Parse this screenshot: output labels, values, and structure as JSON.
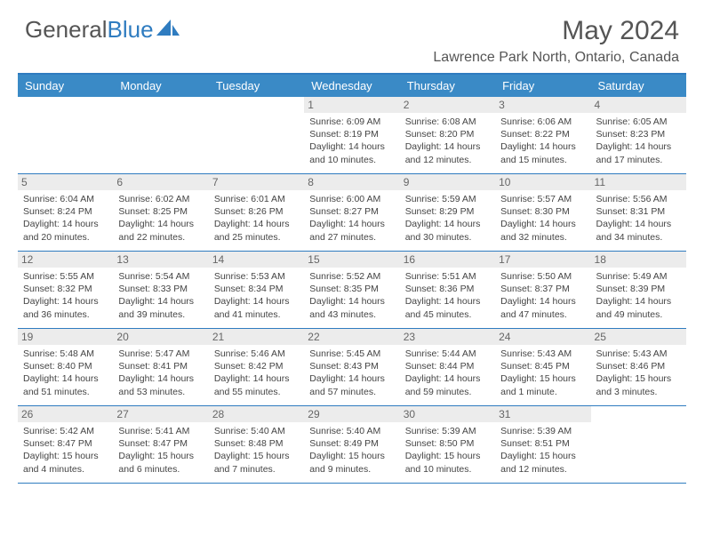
{
  "brand": {
    "part1": "General",
    "part2": "Blue"
  },
  "title": "May 2024",
  "location": "Lawrence Park North, Ontario, Canada",
  "colors": {
    "header_bar": "#3a8ac6",
    "border": "#2f7cc0",
    "daynum_bg": "#ececec",
    "text": "#444"
  },
  "day_names": [
    "Sunday",
    "Monday",
    "Tuesday",
    "Wednesday",
    "Thursday",
    "Friday",
    "Saturday"
  ],
  "weeks": [
    [
      {
        "n": "",
        "sr": "",
        "ss": "",
        "dl": ""
      },
      {
        "n": "",
        "sr": "",
        "ss": "",
        "dl": ""
      },
      {
        "n": "",
        "sr": "",
        "ss": "",
        "dl": ""
      },
      {
        "n": "1",
        "sr": "Sunrise: 6:09 AM",
        "ss": "Sunset: 8:19 PM",
        "dl": "Daylight: 14 hours and 10 minutes."
      },
      {
        "n": "2",
        "sr": "Sunrise: 6:08 AM",
        "ss": "Sunset: 8:20 PM",
        "dl": "Daylight: 14 hours and 12 minutes."
      },
      {
        "n": "3",
        "sr": "Sunrise: 6:06 AM",
        "ss": "Sunset: 8:22 PM",
        "dl": "Daylight: 14 hours and 15 minutes."
      },
      {
        "n": "4",
        "sr": "Sunrise: 6:05 AM",
        "ss": "Sunset: 8:23 PM",
        "dl": "Daylight: 14 hours and 17 minutes."
      }
    ],
    [
      {
        "n": "5",
        "sr": "Sunrise: 6:04 AM",
        "ss": "Sunset: 8:24 PM",
        "dl": "Daylight: 14 hours and 20 minutes."
      },
      {
        "n": "6",
        "sr": "Sunrise: 6:02 AM",
        "ss": "Sunset: 8:25 PM",
        "dl": "Daylight: 14 hours and 22 minutes."
      },
      {
        "n": "7",
        "sr": "Sunrise: 6:01 AM",
        "ss": "Sunset: 8:26 PM",
        "dl": "Daylight: 14 hours and 25 minutes."
      },
      {
        "n": "8",
        "sr": "Sunrise: 6:00 AM",
        "ss": "Sunset: 8:27 PM",
        "dl": "Daylight: 14 hours and 27 minutes."
      },
      {
        "n": "9",
        "sr": "Sunrise: 5:59 AM",
        "ss": "Sunset: 8:29 PM",
        "dl": "Daylight: 14 hours and 30 minutes."
      },
      {
        "n": "10",
        "sr": "Sunrise: 5:57 AM",
        "ss": "Sunset: 8:30 PM",
        "dl": "Daylight: 14 hours and 32 minutes."
      },
      {
        "n": "11",
        "sr": "Sunrise: 5:56 AM",
        "ss": "Sunset: 8:31 PM",
        "dl": "Daylight: 14 hours and 34 minutes."
      }
    ],
    [
      {
        "n": "12",
        "sr": "Sunrise: 5:55 AM",
        "ss": "Sunset: 8:32 PM",
        "dl": "Daylight: 14 hours and 36 minutes."
      },
      {
        "n": "13",
        "sr": "Sunrise: 5:54 AM",
        "ss": "Sunset: 8:33 PM",
        "dl": "Daylight: 14 hours and 39 minutes."
      },
      {
        "n": "14",
        "sr": "Sunrise: 5:53 AM",
        "ss": "Sunset: 8:34 PM",
        "dl": "Daylight: 14 hours and 41 minutes."
      },
      {
        "n": "15",
        "sr": "Sunrise: 5:52 AM",
        "ss": "Sunset: 8:35 PM",
        "dl": "Daylight: 14 hours and 43 minutes."
      },
      {
        "n": "16",
        "sr": "Sunrise: 5:51 AM",
        "ss": "Sunset: 8:36 PM",
        "dl": "Daylight: 14 hours and 45 minutes."
      },
      {
        "n": "17",
        "sr": "Sunrise: 5:50 AM",
        "ss": "Sunset: 8:37 PM",
        "dl": "Daylight: 14 hours and 47 minutes."
      },
      {
        "n": "18",
        "sr": "Sunrise: 5:49 AM",
        "ss": "Sunset: 8:39 PM",
        "dl": "Daylight: 14 hours and 49 minutes."
      }
    ],
    [
      {
        "n": "19",
        "sr": "Sunrise: 5:48 AM",
        "ss": "Sunset: 8:40 PM",
        "dl": "Daylight: 14 hours and 51 minutes."
      },
      {
        "n": "20",
        "sr": "Sunrise: 5:47 AM",
        "ss": "Sunset: 8:41 PM",
        "dl": "Daylight: 14 hours and 53 minutes."
      },
      {
        "n": "21",
        "sr": "Sunrise: 5:46 AM",
        "ss": "Sunset: 8:42 PM",
        "dl": "Daylight: 14 hours and 55 minutes."
      },
      {
        "n": "22",
        "sr": "Sunrise: 5:45 AM",
        "ss": "Sunset: 8:43 PM",
        "dl": "Daylight: 14 hours and 57 minutes."
      },
      {
        "n": "23",
        "sr": "Sunrise: 5:44 AM",
        "ss": "Sunset: 8:44 PM",
        "dl": "Daylight: 14 hours and 59 minutes."
      },
      {
        "n": "24",
        "sr": "Sunrise: 5:43 AM",
        "ss": "Sunset: 8:45 PM",
        "dl": "Daylight: 15 hours and 1 minute."
      },
      {
        "n": "25",
        "sr": "Sunrise: 5:43 AM",
        "ss": "Sunset: 8:46 PM",
        "dl": "Daylight: 15 hours and 3 minutes."
      }
    ],
    [
      {
        "n": "26",
        "sr": "Sunrise: 5:42 AM",
        "ss": "Sunset: 8:47 PM",
        "dl": "Daylight: 15 hours and 4 minutes."
      },
      {
        "n": "27",
        "sr": "Sunrise: 5:41 AM",
        "ss": "Sunset: 8:47 PM",
        "dl": "Daylight: 15 hours and 6 minutes."
      },
      {
        "n": "28",
        "sr": "Sunrise: 5:40 AM",
        "ss": "Sunset: 8:48 PM",
        "dl": "Daylight: 15 hours and 7 minutes."
      },
      {
        "n": "29",
        "sr": "Sunrise: 5:40 AM",
        "ss": "Sunset: 8:49 PM",
        "dl": "Daylight: 15 hours and 9 minutes."
      },
      {
        "n": "30",
        "sr": "Sunrise: 5:39 AM",
        "ss": "Sunset: 8:50 PM",
        "dl": "Daylight: 15 hours and 10 minutes."
      },
      {
        "n": "31",
        "sr": "Sunrise: 5:39 AM",
        "ss": "Sunset: 8:51 PM",
        "dl": "Daylight: 15 hours and 12 minutes."
      },
      {
        "n": "",
        "sr": "",
        "ss": "",
        "dl": ""
      }
    ]
  ]
}
